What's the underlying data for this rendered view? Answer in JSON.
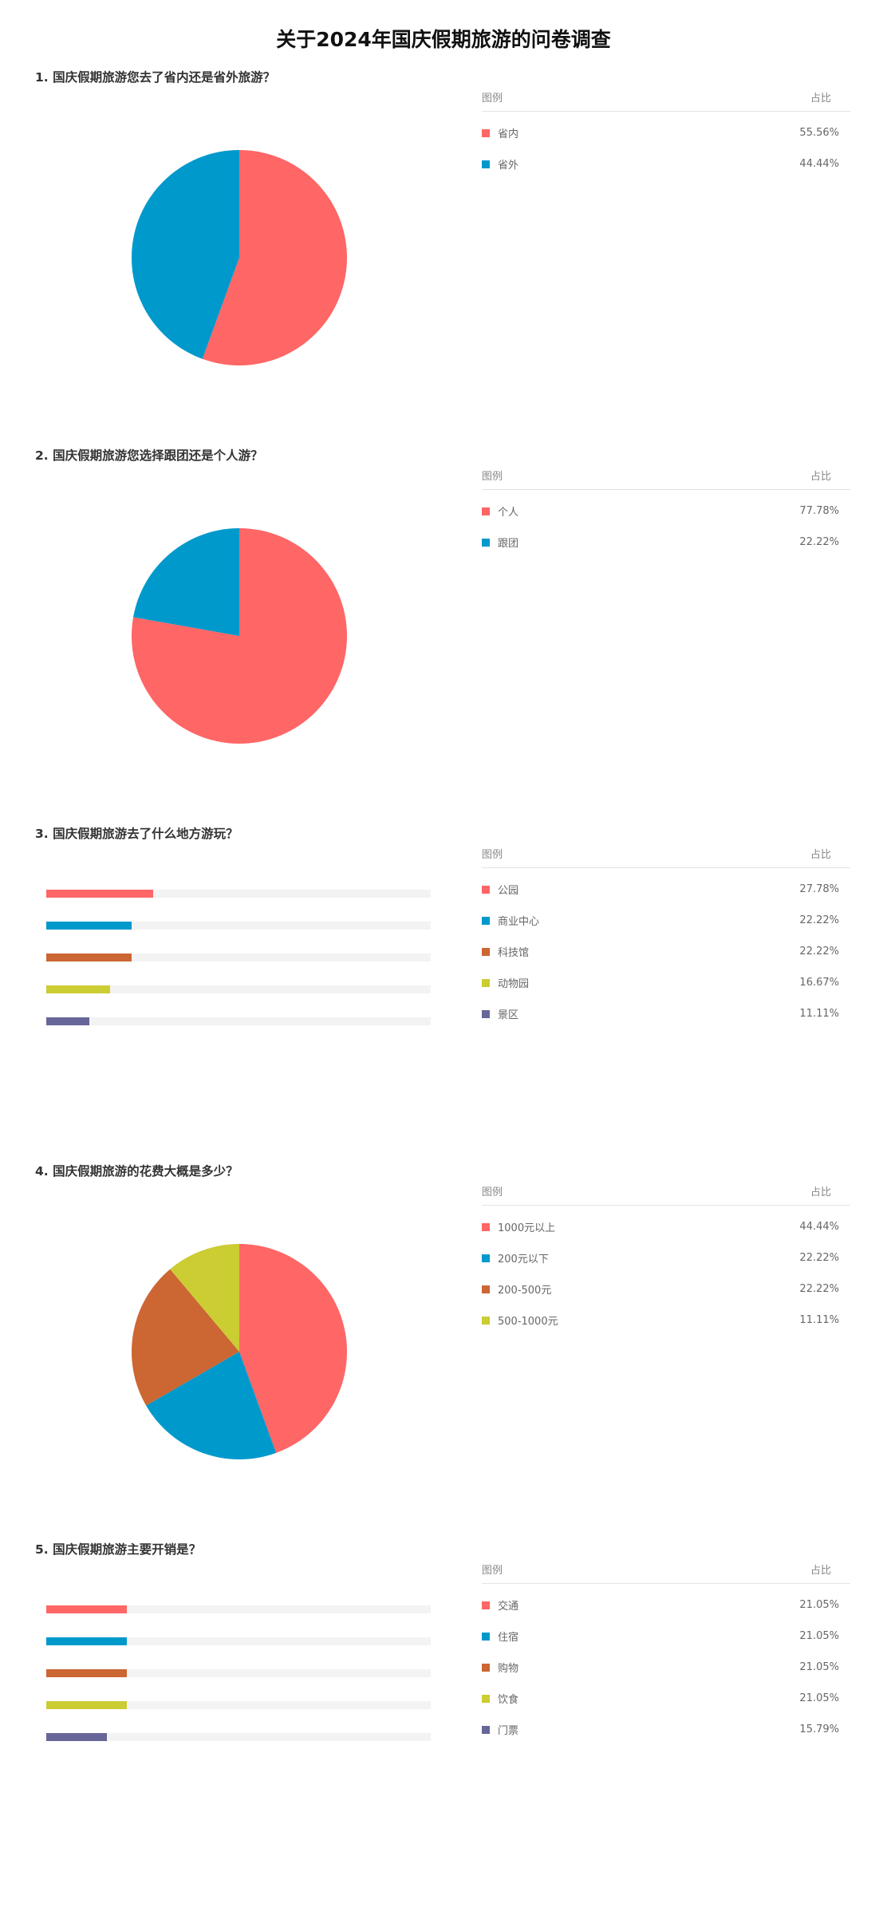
{
  "page": {
    "title": "关于2024年国庆假期旅游的问卷调查"
  },
  "legend_headers": {
    "label": "图例",
    "value": "占比"
  },
  "colors": [
    "#ff6666",
    "#0099cc",
    "#cc6633",
    "#cccc33",
    "#666699"
  ],
  "chart_data": [
    {
      "type": "pie",
      "title": "1. 国庆假期旅游您去了省内还是省外旅游？",
      "categories": [
        "省内",
        "省外"
      ],
      "values": [
        55.56,
        44.44
      ],
      "labels": [
        "55.56%",
        "44.44%"
      ]
    },
    {
      "type": "pie",
      "title": "2. 国庆假期旅游您选择跟团还是个人游？",
      "categories": [
        "个人",
        "跟团"
      ],
      "values": [
        77.78,
        22.22
      ],
      "labels": [
        "77.78%",
        "22.22%"
      ]
    },
    {
      "type": "bar",
      "title": "3. 国庆假期旅游去了什么地方游玩？",
      "categories": [
        "公园",
        "商业中心",
        "科技馆",
        "动物园",
        "景区"
      ],
      "values": [
        27.78,
        22.22,
        22.22,
        16.67,
        11.11
      ],
      "labels": [
        "27.78%",
        "22.22%",
        "22.22%",
        "16.67%",
        "11.11%"
      ]
    },
    {
      "type": "pie",
      "title": "4. 国庆假期旅游的花费大概是多少？",
      "categories": [
        "1000元以上",
        "200元以下",
        "200-500元",
        "500-1000元"
      ],
      "values": [
        44.44,
        22.22,
        22.22,
        11.11
      ],
      "labels": [
        "44.44%",
        "22.22%",
        "22.22%",
        "11.11%"
      ]
    },
    {
      "type": "bar",
      "title": "5. 国庆假期旅游主要开销是？",
      "categories": [
        "交通",
        "住宿",
        "购物",
        "饮食",
        "门票"
      ],
      "values": [
        21.05,
        21.05,
        21.05,
        21.05,
        15.79
      ],
      "labels": [
        "21.05%",
        "21.05%",
        "21.05%",
        "21.05%",
        "15.79%"
      ]
    }
  ]
}
